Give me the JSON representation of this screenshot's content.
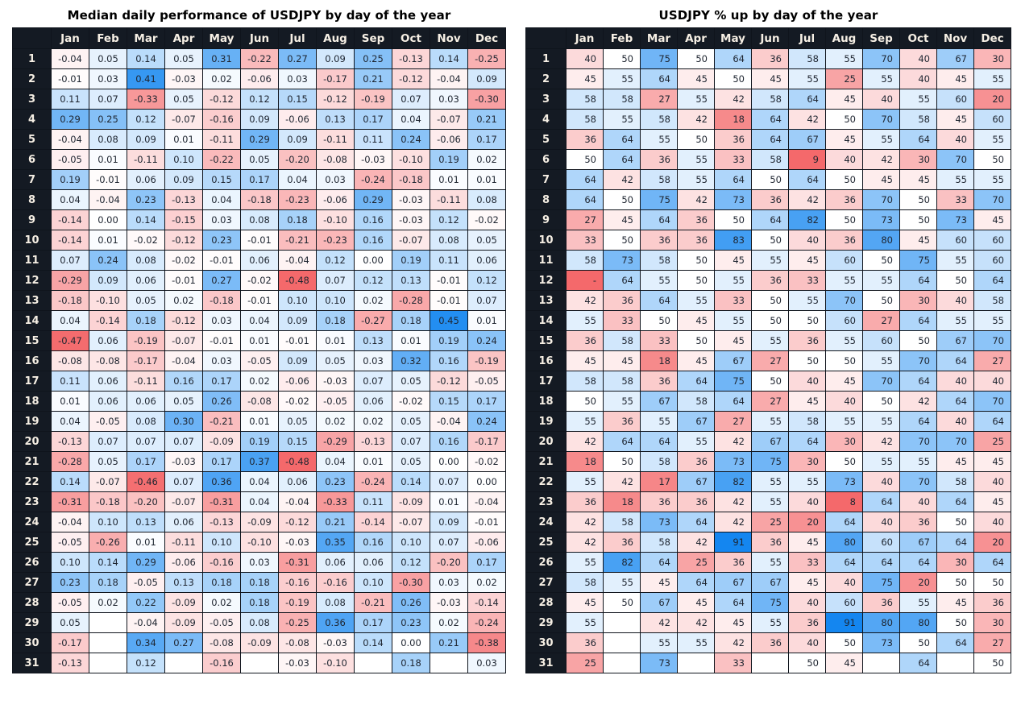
{
  "page": {
    "background": "#ffffff"
  },
  "chart_data": [
    {
      "type": "heatmap",
      "title": "Median daily performance of USDJPY by day of the year",
      "xlabel": "",
      "ylabel": "",
      "categories": [
        "Jan",
        "Feb",
        "Mar",
        "Apr",
        "May",
        "Jun",
        "Jul",
        "Aug",
        "Sep",
        "Oct",
        "Nov",
        "Dec"
      ],
      "row_labels": [
        "1",
        "2",
        "3",
        "4",
        "5",
        "6",
        "7",
        "8",
        "9",
        "10",
        "11",
        "12",
        "13",
        "14",
        "15",
        "16",
        "17",
        "18",
        "19",
        "20",
        "21",
        "22",
        "23",
        "24",
        "25",
        "26",
        "27",
        "28",
        "29",
        "30",
        "31"
      ],
      "values": [
        [
          -0.04,
          0.05,
          0.14,
          0.05,
          0.31,
          -0.22,
          0.27,
          0.09,
          0.25,
          -0.13,
          0.14,
          -0.25
        ],
        [
          -0.01,
          0.03,
          0.41,
          -0.03,
          0.02,
          -0.06,
          0.03,
          -0.17,
          0.21,
          -0.12,
          -0.04,
          0.09
        ],
        [
          0.11,
          0.07,
          -0.33,
          0.05,
          -0.12,
          0.12,
          0.15,
          -0.12,
          -0.19,
          0.07,
          0.03,
          -0.3
        ],
        [
          0.29,
          0.25,
          0.12,
          -0.07,
          -0.16,
          0.09,
          -0.06,
          0.13,
          0.17,
          0.04,
          -0.07,
          0.21
        ],
        [
          -0.04,
          0.08,
          0.09,
          0.01,
          -0.11,
          0.29,
          0.09,
          -0.11,
          0.11,
          0.24,
          -0.06,
          0.17
        ],
        [
          -0.05,
          0.01,
          -0.11,
          0.1,
          -0.22,
          0.05,
          -0.2,
          -0.08,
          -0.03,
          -0.1,
          0.19,
          0.02
        ],
        [
          0.19,
          -0.01,
          0.06,
          0.09,
          0.15,
          0.17,
          0.04,
          0.03,
          -0.24,
          -0.18,
          0.01,
          0.01
        ],
        [
          0.04,
          -0.04,
          0.23,
          -0.13,
          0.04,
          -0.18,
          -0.23,
          -0.06,
          0.29,
          -0.03,
          -0.11,
          0.08
        ],
        [
          -0.14,
          0.0,
          0.14,
          -0.15,
          0.03,
          0.08,
          0.18,
          -0.1,
          0.16,
          -0.03,
          0.12,
          -0.02
        ],
        [
          -0.14,
          0.01,
          -0.02,
          -0.12,
          0.23,
          -0.01,
          -0.21,
          -0.23,
          0.16,
          -0.07,
          0.08,
          0.05
        ],
        [
          0.07,
          0.24,
          0.08,
          -0.02,
          -0.01,
          0.06,
          -0.04,
          0.12,
          0.0,
          0.19,
          0.11,
          0.06
        ],
        [
          -0.29,
          0.09,
          0.06,
          -0.01,
          0.27,
          -0.02,
          -0.48,
          0.07,
          0.12,
          0.13,
          -0.01,
          0.12
        ],
        [
          -0.18,
          -0.1,
          0.05,
          0.02,
          -0.18,
          -0.01,
          0.1,
          0.1,
          0.02,
          -0.28,
          -0.01,
          0.07
        ],
        [
          0.04,
          -0.14,
          0.18,
          -0.12,
          0.03,
          0.04,
          0.09,
          0.18,
          -0.27,
          0.18,
          0.45,
          0.01
        ],
        [
          -0.47,
          0.06,
          -0.19,
          -0.07,
          -0.01,
          0.01,
          -0.01,
          0.01,
          0.13,
          0.01,
          0.19,
          0.24
        ],
        [
          -0.08,
          -0.08,
          -0.17,
          -0.04,
          0.03,
          -0.05,
          0.09,
          0.05,
          0.03,
          0.32,
          0.16,
          -0.19
        ],
        [
          0.11,
          0.06,
          -0.11,
          0.16,
          0.17,
          0.02,
          -0.06,
          -0.03,
          0.07,
          0.05,
          -0.12,
          -0.05
        ],
        [
          0.01,
          0.06,
          0.06,
          0.05,
          0.26,
          -0.08,
          -0.02,
          -0.05,
          0.06,
          -0.02,
          0.15,
          0.17
        ],
        [
          0.04,
          -0.05,
          0.08,
          0.3,
          -0.21,
          0.01,
          0.05,
          0.02,
          0.02,
          0.05,
          -0.04,
          0.24
        ],
        [
          -0.13,
          0.07,
          0.07,
          0.07,
          -0.09,
          0.19,
          0.15,
          -0.29,
          -0.13,
          0.07,
          0.16,
          -0.17
        ],
        [
          -0.28,
          0.05,
          0.17,
          -0.03,
          0.17,
          0.37,
          -0.48,
          0.04,
          0.01,
          0.05,
          0.0,
          -0.02
        ],
        [
          0.14,
          -0.07,
          -0.46,
          0.07,
          0.36,
          0.04,
          0.06,
          0.23,
          -0.24,
          0.14,
          0.07,
          0.0
        ],
        [
          -0.31,
          -0.18,
          -0.2,
          -0.07,
          -0.31,
          0.04,
          -0.04,
          -0.33,
          0.11,
          -0.09,
          0.01,
          -0.04
        ],
        [
          -0.04,
          0.1,
          0.13,
          0.06,
          -0.13,
          -0.09,
          -0.12,
          0.21,
          -0.14,
          -0.07,
          0.09,
          -0.01
        ],
        [
          -0.05,
          -0.26,
          0.01,
          -0.11,
          0.1,
          -0.1,
          -0.03,
          0.35,
          0.16,
          0.1,
          0.07,
          -0.06
        ],
        [
          0.1,
          0.14,
          0.29,
          -0.06,
          -0.16,
          0.03,
          -0.31,
          0.06,
          0.06,
          0.12,
          -0.2,
          0.17
        ],
        [
          0.23,
          0.18,
          -0.05,
          0.13,
          0.18,
          0.18,
          -0.16,
          -0.16,
          0.1,
          -0.3,
          0.03,
          0.02
        ],
        [
          -0.05,
          0.02,
          0.22,
          -0.09,
          0.02,
          0.18,
          -0.19,
          0.08,
          -0.21,
          0.26,
          -0.03,
          -0.14
        ],
        [
          0.05,
          null,
          -0.04,
          -0.09,
          -0.05,
          0.08,
          -0.25,
          0.36,
          0.17,
          0.23,
          0.02,
          -0.24
        ],
        [
          -0.17,
          null,
          0.34,
          0.27,
          -0.08,
          -0.09,
          -0.08,
          -0.03,
          0.14,
          0.0,
          0.21,
          -0.38
        ],
        [
          -0.13,
          null,
          0.12,
          null,
          -0.16,
          null,
          -0.03,
          -0.1,
          null,
          0.18,
          null,
          0.03
        ]
      ],
      "layout": {
        "value_format": "fixed2",
        "align": "center",
        "label_col_width": 48,
        "data_col_width": 47,
        "color_center": 0,
        "color_span": 0.48,
        "negative_color": "#f4696b",
        "positive_color": "#1486f0",
        "missing_color": "#ffffff"
      }
    },
    {
      "type": "heatmap",
      "title": "USDJPY % up by day of the year",
      "xlabel": "",
      "ylabel": "",
      "categories": [
        "Jan",
        "Feb",
        "Mar",
        "Apr",
        "May",
        "Jun",
        "Jul",
        "Aug",
        "Sep",
        "Oct",
        "Nov",
        "Dec"
      ],
      "row_labels": [
        "1",
        "2",
        "3",
        "4",
        "5",
        "6",
        "7",
        "8",
        "9",
        "10",
        "11",
        "12",
        "13",
        "14",
        "15",
        "16",
        "17",
        "18",
        "19",
        "20",
        "21",
        "22",
        "23",
        "24",
        "25",
        "26",
        "27",
        "28",
        "29",
        "30",
        "31"
      ],
      "values": [
        [
          40,
          50,
          75,
          50,
          64,
          36,
          58,
          55,
          70,
          40,
          67,
          30
        ],
        [
          45,
          55,
          64,
          45,
          50,
          45,
          55,
          25,
          55,
          40,
          45,
          55
        ],
        [
          58,
          58,
          27,
          55,
          42,
          58,
          64,
          45,
          40,
          55,
          60,
          20
        ],
        [
          58,
          55,
          58,
          42,
          18,
          64,
          42,
          50,
          70,
          58,
          45,
          60
        ],
        [
          36,
          64,
          55,
          50,
          36,
          64,
          67,
          45,
          55,
          64,
          40,
          55
        ],
        [
          50,
          64,
          36,
          55,
          33,
          58,
          9,
          40,
          42,
          30,
          70,
          50
        ],
        [
          64,
          42,
          58,
          55,
          64,
          50,
          64,
          50,
          45,
          45,
          55,
          55
        ],
        [
          64,
          50,
          75,
          42,
          73,
          36,
          42,
          36,
          70,
          50,
          33,
          70
        ],
        [
          27,
          45,
          64,
          36,
          50,
          64,
          82,
          50,
          73,
          50,
          73,
          45
        ],
        [
          33,
          50,
          36,
          36,
          83,
          50,
          40,
          36,
          80,
          45,
          60,
          60
        ],
        [
          58,
          73,
          58,
          50,
          45,
          55,
          45,
          60,
          50,
          75,
          55,
          60
        ],
        [
          "-",
          64,
          55,
          50,
          55,
          36,
          33,
          55,
          55,
          64,
          50,
          64
        ],
        [
          42,
          36,
          64,
          55,
          33,
          50,
          55,
          70,
          50,
          30,
          40,
          58
        ],
        [
          55,
          33,
          50,
          45,
          55,
          50,
          50,
          60,
          27,
          64,
          55,
          55
        ],
        [
          36,
          58,
          33,
          50,
          45,
          55,
          36,
          55,
          60,
          50,
          67,
          70
        ],
        [
          45,
          45,
          18,
          45,
          67,
          27,
          50,
          50,
          55,
          70,
          64,
          27
        ],
        [
          58,
          58,
          36,
          64,
          75,
          50,
          40,
          45,
          70,
          64,
          40,
          40
        ],
        [
          50,
          55,
          67,
          58,
          64,
          27,
          45,
          40,
          50,
          42,
          64,
          70
        ],
        [
          55,
          36,
          55,
          67,
          27,
          55,
          58,
          55,
          55,
          64,
          40,
          64
        ],
        [
          42,
          64,
          64,
          55,
          42,
          67,
          64,
          30,
          42,
          70,
          70,
          25
        ],
        [
          18,
          50,
          58,
          36,
          73,
          75,
          30,
          50,
          55,
          55,
          45,
          45
        ],
        [
          55,
          42,
          17,
          67,
          82,
          55,
          55,
          73,
          40,
          70,
          58,
          40
        ],
        [
          36,
          18,
          36,
          36,
          42,
          55,
          40,
          8,
          64,
          40,
          64,
          45
        ],
        [
          42,
          58,
          73,
          64,
          42,
          25,
          20,
          64,
          40,
          36,
          50,
          40
        ],
        [
          42,
          36,
          58,
          42,
          91,
          36,
          45,
          80,
          60,
          67,
          64,
          20
        ],
        [
          55,
          82,
          64,
          25,
          36,
          55,
          33,
          64,
          64,
          64,
          30,
          64
        ],
        [
          58,
          55,
          45,
          64,
          67,
          67,
          45,
          40,
          75,
          20,
          50,
          50
        ],
        [
          45,
          50,
          67,
          45,
          64,
          75,
          40,
          60,
          36,
          55,
          45,
          36
        ],
        [
          55,
          null,
          42,
          42,
          45,
          55,
          36,
          91,
          80,
          80,
          50,
          30
        ],
        [
          36,
          null,
          55,
          55,
          42,
          36,
          40,
          50,
          73,
          50,
          64,
          27
        ],
        [
          25,
          null,
          73,
          null,
          33,
          null,
          50,
          45,
          null,
          64,
          null,
          50
        ]
      ],
      "layout": {
        "value_format": "int",
        "align": "right",
        "label_col_width": 50,
        "data_col_width": 46,
        "color_center": 50,
        "color_span": 41,
        "negative_color": "#f4696b",
        "positive_color": "#1486f0",
        "missing_color": "#ffffff"
      }
    }
  ]
}
